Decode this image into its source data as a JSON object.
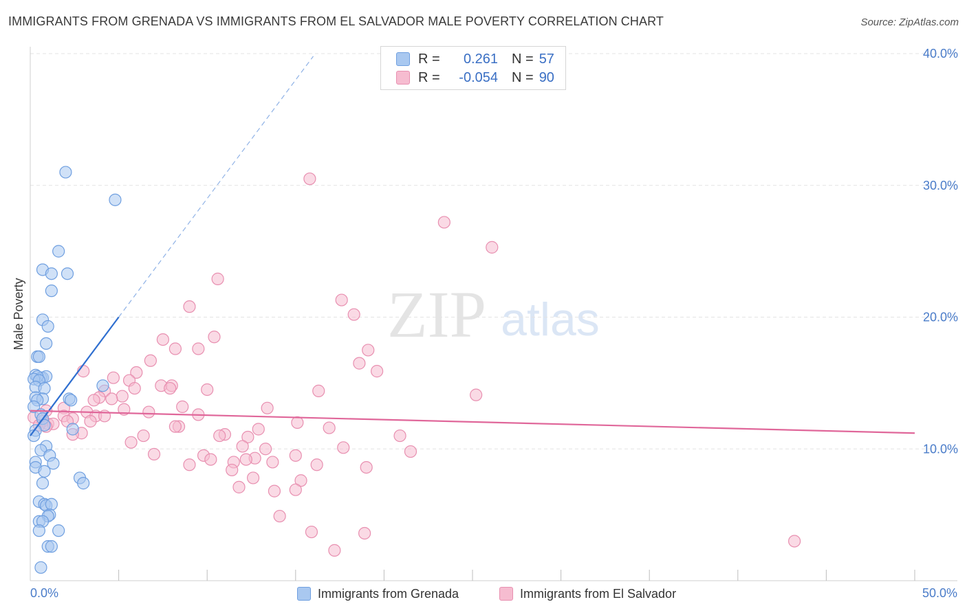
{
  "title": "IMMIGRANTS FROM GRENADA VS IMMIGRANTS FROM EL SALVADOR MALE POVERTY CORRELATION CHART",
  "source": "Source: ZipAtlas.com",
  "watermark": {
    "zip": "ZIP",
    "atlas": "atlas"
  },
  "legend_top": {
    "rows": [
      {
        "r_label": "R =",
        "r_value": "0.261",
        "n_label": "N =",
        "n_value": "57"
      },
      {
        "r_label": "R =",
        "r_value": "-0.054",
        "n_label": "N =",
        "n_value": "90"
      }
    ]
  },
  "colors": {
    "grenada_fill": "#a9c8f0",
    "grenada_stroke": "#6f9fe0",
    "grenada_line": "#2f6fd0",
    "salvador_fill": "#f6bcd0",
    "salvador_stroke": "#e88fb0",
    "salvador_line": "#e0679a",
    "tick_text": "#4a7cc9",
    "grid": "#e3e3e3"
  },
  "chart_data": {
    "type": "scatter",
    "title": "IMMIGRANTS FROM GRENADA VS IMMIGRANTS FROM EL SALVADOR MALE POVERTY CORRELATION CHART",
    "xlabel": "",
    "ylabel": "Male Poverty",
    "xlim": [
      0,
      50
    ],
    "ylim": [
      0,
      40
    ],
    "x_ticks": [
      0,
      5,
      10,
      15,
      20,
      25,
      30,
      35,
      40,
      45,
      50
    ],
    "x_tick_labels": {
      "0": "0.0%",
      "50": "50.0%"
    },
    "y_ticks": [
      10,
      20,
      30,
      40
    ],
    "y_tick_labels": [
      "10.0%",
      "20.0%",
      "30.0%",
      "40.0%"
    ],
    "grid": true,
    "legend_position": "bottom",
    "series": [
      {
        "name": "Immigrants from Grenada",
        "R": 0.261,
        "N": 57,
        "trend": {
          "x0": 0.0,
          "y0": 11.0,
          "x1": 5.0,
          "y1": 20.0,
          "dash_to_x": 16.0
        },
        "points": [
          [
            2.0,
            31.0
          ],
          [
            4.8,
            28.9
          ],
          [
            1.6,
            25.0
          ],
          [
            0.7,
            23.6
          ],
          [
            2.1,
            23.3
          ],
          [
            1.2,
            23.3
          ],
          [
            1.2,
            22.0
          ],
          [
            0.7,
            19.8
          ],
          [
            1.0,
            19.3
          ],
          [
            0.9,
            18.0
          ],
          [
            0.4,
            17.0
          ],
          [
            0.5,
            17.0
          ],
          [
            0.3,
            15.6
          ],
          [
            0.6,
            15.4
          ],
          [
            0.7,
            15.4
          ],
          [
            0.9,
            15.5
          ],
          [
            0.4,
            15.5
          ],
          [
            0.2,
            15.3
          ],
          [
            0.5,
            15.2
          ],
          [
            0.3,
            14.7
          ],
          [
            0.8,
            14.6
          ],
          [
            4.1,
            14.8
          ],
          [
            0.3,
            13.9
          ],
          [
            0.7,
            13.8
          ],
          [
            2.2,
            13.8
          ],
          [
            2.3,
            13.7
          ],
          [
            0.4,
            13.7
          ],
          [
            0.2,
            13.2
          ],
          [
            0.6,
            12.6
          ],
          [
            0.7,
            12.3
          ],
          [
            0.8,
            11.8
          ],
          [
            2.4,
            11.5
          ],
          [
            0.3,
            11.4
          ],
          [
            0.2,
            11.0
          ],
          [
            0.9,
            10.2
          ],
          [
            0.6,
            9.9
          ],
          [
            1.1,
            9.5
          ],
          [
            0.3,
            9.0
          ],
          [
            1.3,
            8.9
          ],
          [
            0.3,
            8.6
          ],
          [
            0.8,
            8.3
          ],
          [
            2.8,
            7.8
          ],
          [
            3.0,
            7.4
          ],
          [
            0.7,
            7.4
          ],
          [
            0.5,
            6.0
          ],
          [
            0.8,
            5.8
          ],
          [
            0.9,
            5.7
          ],
          [
            1.2,
            5.8
          ],
          [
            1.1,
            5.0
          ],
          [
            1.0,
            4.9
          ],
          [
            0.5,
            4.5
          ],
          [
            0.7,
            4.5
          ],
          [
            1.6,
            3.8
          ],
          [
            0.5,
            3.8
          ],
          [
            1.0,
            2.6
          ],
          [
            1.2,
            2.6
          ],
          [
            0.6,
            1.0
          ]
        ]
      },
      {
        "name": "Immigrants from El Salvador",
        "R": -0.054,
        "N": 90,
        "trend": {
          "x0": 0.0,
          "y0": 12.9,
          "x1": 50.0,
          "y1": 11.2
        },
        "points": [
          [
            15.8,
            30.5
          ],
          [
            23.4,
            27.2
          ],
          [
            26.1,
            25.3
          ],
          [
            10.6,
            22.9
          ],
          [
            17.6,
            21.3
          ],
          [
            9.0,
            20.8
          ],
          [
            18.3,
            20.2
          ],
          [
            10.4,
            18.5
          ],
          [
            7.5,
            18.3
          ],
          [
            8.2,
            17.6
          ],
          [
            9.5,
            17.6
          ],
          [
            19.1,
            17.5
          ],
          [
            6.8,
            16.7
          ],
          [
            18.6,
            16.5
          ],
          [
            3.0,
            15.9
          ],
          [
            19.6,
            15.9
          ],
          [
            6.0,
            15.8
          ],
          [
            4.7,
            15.4
          ],
          [
            5.6,
            15.2
          ],
          [
            7.4,
            14.8
          ],
          [
            8.0,
            14.8
          ],
          [
            5.9,
            14.6
          ],
          [
            7.9,
            14.6
          ],
          [
            10.0,
            14.5
          ],
          [
            16.3,
            14.4
          ],
          [
            4.2,
            14.4
          ],
          [
            25.2,
            14.1
          ],
          [
            5.2,
            14.0
          ],
          [
            3.9,
            13.9
          ],
          [
            4.6,
            13.8
          ],
          [
            3.6,
            13.7
          ],
          [
            8.6,
            13.2
          ],
          [
            13.4,
            13.1
          ],
          [
            5.3,
            13.0
          ],
          [
            1.9,
            13.1
          ],
          [
            0.9,
            12.9
          ],
          [
            3.2,
            12.8
          ],
          [
            6.7,
            12.8
          ],
          [
            9.5,
            12.6
          ],
          [
            3.7,
            12.5
          ],
          [
            1.9,
            12.5
          ],
          [
            4.2,
            12.5
          ],
          [
            0.2,
            12.4
          ],
          [
            2.4,
            12.3
          ],
          [
            2.1,
            12.1
          ],
          [
            0.7,
            12.1
          ],
          [
            3.4,
            12.1
          ],
          [
            1.0,
            11.9
          ],
          [
            15.1,
            12.0
          ],
          [
            0.5,
            11.8
          ],
          [
            1.3,
            11.9
          ],
          [
            0.9,
            11.7
          ],
          [
            8.4,
            11.7
          ],
          [
            8.2,
            11.7
          ],
          [
            12.9,
            11.5
          ],
          [
            16.9,
            11.6
          ],
          [
            2.9,
            11.2
          ],
          [
            2.4,
            11.1
          ],
          [
            11.0,
            11.1
          ],
          [
            10.7,
            11.0
          ],
          [
            12.3,
            10.9
          ],
          [
            20.9,
            11.0
          ],
          [
            6.4,
            11.0
          ],
          [
            5.7,
            10.5
          ],
          [
            12.0,
            10.2
          ],
          [
            17.7,
            10.1
          ],
          [
            13.3,
            10.0
          ],
          [
            21.5,
            9.8
          ],
          [
            7.0,
            9.6
          ],
          [
            9.8,
            9.5
          ],
          [
            15.0,
            9.5
          ],
          [
            12.7,
            9.3
          ],
          [
            10.2,
            9.2
          ],
          [
            12.2,
            9.2
          ],
          [
            13.7,
            9.0
          ],
          [
            11.5,
            9.0
          ],
          [
            9.0,
            8.8
          ],
          [
            16.2,
            8.8
          ],
          [
            11.4,
            8.4
          ],
          [
            19.0,
            8.6
          ],
          [
            12.6,
            7.8
          ],
          [
            15.3,
            7.6
          ],
          [
            11.8,
            7.1
          ],
          [
            13.8,
            6.8
          ],
          [
            15.0,
            6.9
          ],
          [
            14.1,
            4.9
          ],
          [
            15.9,
            3.7
          ],
          [
            18.9,
            3.6
          ],
          [
            17.2,
            2.3
          ],
          [
            43.2,
            3.0
          ]
        ]
      }
    ]
  },
  "bottom_legend": [
    {
      "label": "Immigrants from Grenada"
    },
    {
      "label": "Immigrants from El Salvador"
    }
  ]
}
